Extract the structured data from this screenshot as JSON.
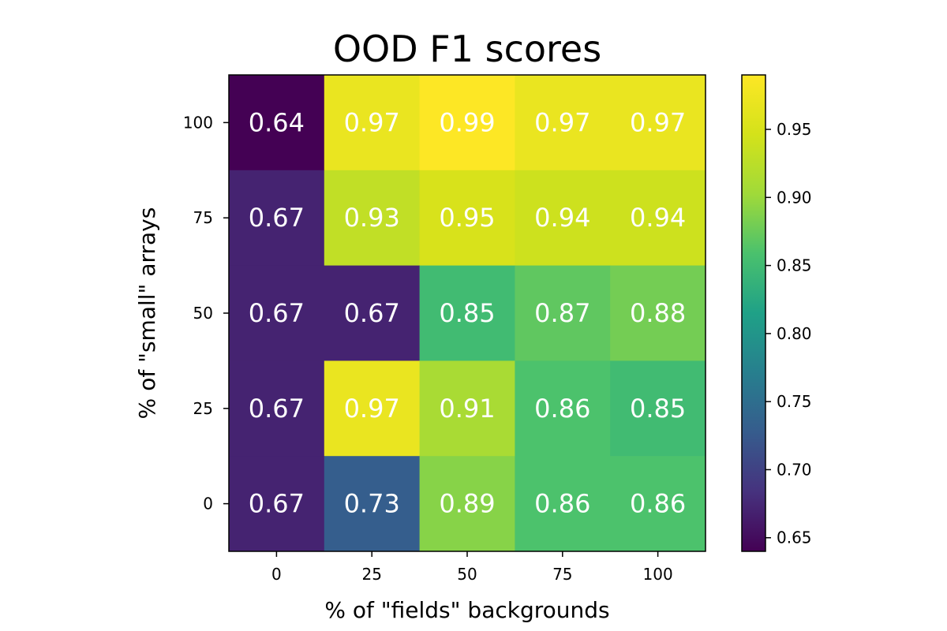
{
  "chart_data": {
    "type": "heatmap",
    "title": "OOD F1 scores",
    "xlabel": "% of \"fields\" backgrounds",
    "ylabel": "% of \"small\" arrays",
    "x_categories": [
      "0",
      "25",
      "50",
      "75",
      "100"
    ],
    "y_categories": [
      "100",
      "75",
      "50",
      "25",
      "0"
    ],
    "values": [
      [
        0.64,
        0.97,
        0.99,
        0.97,
        0.97
      ],
      [
        0.67,
        0.93,
        0.95,
        0.94,
        0.94
      ],
      [
        0.67,
        0.67,
        0.85,
        0.87,
        0.88
      ],
      [
        0.67,
        0.97,
        0.91,
        0.86,
        0.85
      ],
      [
        0.67,
        0.73,
        0.89,
        0.86,
        0.86
      ]
    ],
    "colormap": "viridis",
    "colorbar": {
      "range": [
        0.64,
        0.99
      ],
      "ticks": [
        "0.65",
        "0.70",
        "0.75",
        "0.80",
        "0.85",
        "0.90",
        "0.95"
      ]
    },
    "cell_label_color": "#ffffff"
  }
}
